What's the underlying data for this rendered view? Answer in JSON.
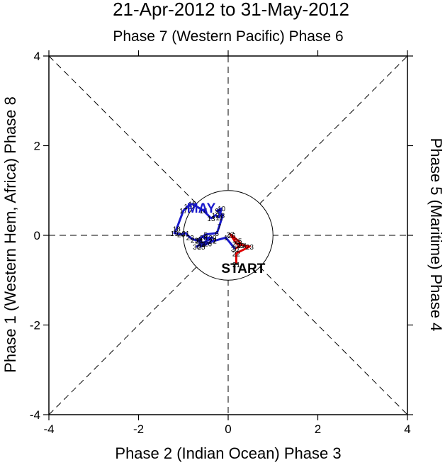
{
  "chart_data": {
    "type": "line",
    "title": "21-Apr-2012 to 31-May-2012",
    "top_label": "Phase 7 (Western Pacific) Phase 6",
    "bottom_label": "Phase 2 (Indian Ocean) Phase 3",
    "left_label": "Phase 1 (Western Hem, Africa) Phase 8",
    "right_label": "Phase 5 (Maritime) Phase 4",
    "xlim": [
      -4,
      4
    ],
    "ylim": [
      -4,
      4
    ],
    "x_ticks": [
      "-4",
      "-2",
      "0",
      "2",
      "4"
    ],
    "y_ticks": [
      "-4",
      "-2",
      "0",
      "2",
      "4"
    ],
    "start_label": "START",
    "colors": {
      "april": "#e00000",
      "may": "#1a1acc",
      "axes": "#000000"
    },
    "series": [
      {
        "name": "Apr",
        "color": "#e00000",
        "points": [
          {
            "day": "21",
            "x": 0.18,
            "y": -0.65
          },
          {
            "day": "22",
            "x": 0.18,
            "y": -0.4
          },
          {
            "day": "23",
            "x": 0.48,
            "y": -0.25
          },
          {
            "day": "24",
            "x": 0.32,
            "y": -0.22
          },
          {
            "day": "25",
            "x": 0.22,
            "y": -0.12
          },
          {
            "day": "26",
            "x": 0.08,
            "y": 0.0
          },
          {
            "day": "27",
            "x": 0.05,
            "y": 0.02
          },
          {
            "day": "28",
            "x": 0.18,
            "y": -0.18
          },
          {
            "day": "29",
            "x": 0.28,
            "y": -0.22
          },
          {
            "day": "30",
            "x": 0.15,
            "y": -0.3
          }
        ]
      },
      {
        "name": "May",
        "color": "#1a1acc",
        "points": [
          {
            "day": "1",
            "x": -0.05,
            "y": -0.05
          },
          {
            "day": "2",
            "x": -0.3,
            "y": -0.12
          },
          {
            "day": "3",
            "x": -0.55,
            "y": -0.2
          },
          {
            "day": "4",
            "x": -0.65,
            "y": -0.08
          },
          {
            "day": "5",
            "x": -0.5,
            "y": 0.02
          },
          {
            "day": "6",
            "x": -0.25,
            "y": 0.05
          },
          {
            "day": "7",
            "x": -0.2,
            "y": 0.2
          },
          {
            "day": "8",
            "x": -0.12,
            "y": 0.45
          },
          {
            "day": "9",
            "x": -0.25,
            "y": 0.55
          },
          {
            "day": "10",
            "x": -0.15,
            "y": 0.6
          },
          {
            "day": "11",
            "x": -0.2,
            "y": 0.4
          },
          {
            "day": "12",
            "x": -0.28,
            "y": 0.45
          },
          {
            "day": "13",
            "x": -0.38,
            "y": 0.38
          },
          {
            "day": "14",
            "x": -0.55,
            "y": 0.55
          },
          {
            "day": "15",
            "x": -0.8,
            "y": 0.7
          },
          {
            "day": "16",
            "x": -0.9,
            "y": 0.65
          },
          {
            "day": "17",
            "x": -1.0,
            "y": 0.55
          },
          {
            "day": "18",
            "x": -1.15,
            "y": 0.15
          },
          {
            "day": "19",
            "x": -1.2,
            "y": 0.05
          },
          {
            "day": "20",
            "x": -1.05,
            "y": 0.02
          },
          {
            "day": "21",
            "x": -0.95,
            "y": 0.05
          },
          {
            "day": "22",
            "x": -0.85,
            "y": -0.05
          },
          {
            "day": "23",
            "x": -0.75,
            "y": -0.1
          },
          {
            "day": "24",
            "x": -0.65,
            "y": -0.12
          },
          {
            "day": "25",
            "x": -0.6,
            "y": -0.25
          },
          {
            "day": "26",
            "x": -0.45,
            "y": -0.18
          },
          {
            "day": "27",
            "x": -0.35,
            "y": -0.12
          },
          {
            "day": "28",
            "x": -0.55,
            "y": -0.05
          },
          {
            "day": "29",
            "x": -0.35,
            "y": -0.05
          },
          {
            "day": "30",
            "x": -0.7,
            "y": -0.25
          },
          {
            "day": "31",
            "x": -0.6,
            "y": -0.18
          }
        ]
      }
    ],
    "annotations": [
      {
        "text": "MAY",
        "x": -0.6,
        "y": 0.6,
        "color": "#1a1acc"
      }
    ]
  }
}
